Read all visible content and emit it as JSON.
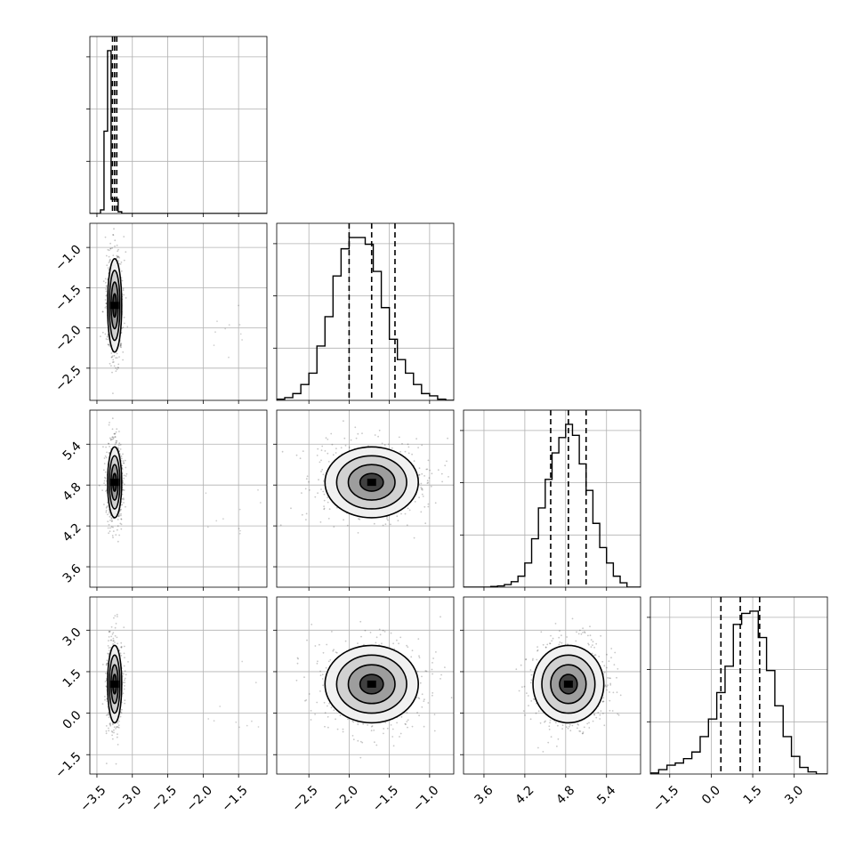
{
  "chart_data": {
    "type": "corner",
    "parameters": [
      {
        "ticks": [
          -3.5,
          -3.0,
          -2.5,
          -2.0,
          -1.5
        ],
        "tick_labels": [
          "−3.5",
          "−3.0",
          "−2.5",
          "−2.0",
          "−1.5"
        ],
        "range": [
          -3.6,
          -1.1
        ],
        "quantiles": [
          -3.28,
          -3.25,
          -3.22
        ],
        "hist_bins": [
          -3.6,
          -3.5,
          -3.45,
          -3.4,
          -3.35,
          -3.3,
          -3.2,
          -3.15,
          -1.1
        ],
        "hist_counts": [
          0,
          0,
          0.02,
          0.46,
          0.91,
          0.08,
          0.01,
          0
        ]
      },
      {
        "ticks": [
          -1.0,
          -1.5,
          -2.0,
          -2.5
        ],
        "tick_labels": [
          "−1.0",
          "−1.5",
          "−2.0",
          "−2.5"
        ],
        "range": [
          -2.9,
          -0.7
        ],
        "ticks_x": [
          -2.5,
          -2.0,
          -1.5,
          -1.0
        ],
        "tick_labels_x": [
          "−2.5",
          "−2.0",
          "−1.5",
          "−1.0"
        ],
        "quantiles": [
          -2.0,
          -1.72,
          -1.43
        ],
        "hist_bins": [
          -2.9,
          -2.8,
          -2.7,
          -2.6,
          -2.5,
          -2.4,
          -2.3,
          -2.2,
          -2.1,
          -2.0,
          -1.9,
          -1.8,
          -1.7,
          -1.6,
          -1.5,
          -1.4,
          -1.3,
          -1.2,
          -1.1,
          -1.0,
          -0.9,
          -0.8,
          -0.7
        ],
        "hist_counts": [
          0.005,
          0.012,
          0.03,
          0.07,
          0.12,
          0.24,
          0.37,
          0.55,
          0.67,
          0.72,
          0.72,
          0.69,
          0.57,
          0.41,
          0.27,
          0.18,
          0.12,
          0.07,
          0.03,
          0.02,
          0.005,
          0.0
        ]
      },
      {
        "ticks": [
          5.4,
          4.8,
          4.2,
          3.6
        ],
        "tick_labels": [
          "5.4",
          "4.8",
          "4.2",
          "3.6"
        ],
        "range": [
          3.3,
          5.9
        ],
        "ticks_x": [
          3.6,
          4.2,
          4.8,
          5.4
        ],
        "tick_labels_x": [
          "3.6",
          "4.2",
          "4.8",
          "5.4"
        ],
        "quantiles": [
          4.58,
          4.84,
          5.1
        ],
        "hist_bins": [
          3.3,
          3.4,
          3.5,
          3.6,
          3.7,
          3.8,
          3.9,
          4.0,
          4.1,
          4.2,
          4.3,
          4.4,
          4.5,
          4.6,
          4.7,
          4.8,
          4.9,
          5.0,
          5.1,
          5.2,
          5.3,
          5.4,
          5.5,
          5.6,
          5.7,
          5.8,
          5.9
        ],
        "hist_counts": [
          0.0,
          0.0,
          0.0,
          0.0,
          0.003,
          0.006,
          0.012,
          0.025,
          0.05,
          0.11,
          0.22,
          0.36,
          0.49,
          0.61,
          0.68,
          0.74,
          0.69,
          0.56,
          0.44,
          0.29,
          0.18,
          0.11,
          0.05,
          0.02,
          0.0,
          0.0
        ]
      },
      {
        "ticks": [
          3.0,
          1.5,
          0.0,
          -1.5
        ],
        "tick_labels": [
          "3.0",
          "1.5",
          "0.0",
          "−1.5"
        ],
        "range": [
          -2.2,
          4.2
        ],
        "ticks_x": [
          -1.5,
          0.0,
          1.5,
          3.0
        ],
        "tick_labels_x": [
          "−1.5",
          "0.0",
          "1.5",
          "3.0"
        ],
        "quantiles": [
          0.35,
          1.05,
          1.75
        ],
        "hist_bins": [
          -2.2,
          -1.9,
          -1.6,
          -1.3,
          -1.0,
          -0.7,
          -0.4,
          -0.1,
          0.2,
          0.5,
          0.8,
          1.1,
          1.4,
          1.7,
          2.0,
          2.3,
          2.6,
          2.9,
          3.2,
          3.5,
          3.8,
          4.2
        ],
        "hist_counts": [
          0.005,
          0.02,
          0.04,
          0.05,
          0.07,
          0.1,
          0.17,
          0.25,
          0.37,
          0.49,
          0.68,
          0.73,
          0.74,
          0.62,
          0.47,
          0.31,
          0.17,
          0.08,
          0.03,
          0.01,
          0.0
        ]
      }
    ],
    "means": [
      -3.25,
      -1.72,
      4.84,
      1.05
    ],
    "sigmas": [
      0.05,
      0.29,
      0.26,
      0.7
    ],
    "grid": true,
    "line_color": "#000000",
    "grid_color": "#b0b0b0"
  }
}
